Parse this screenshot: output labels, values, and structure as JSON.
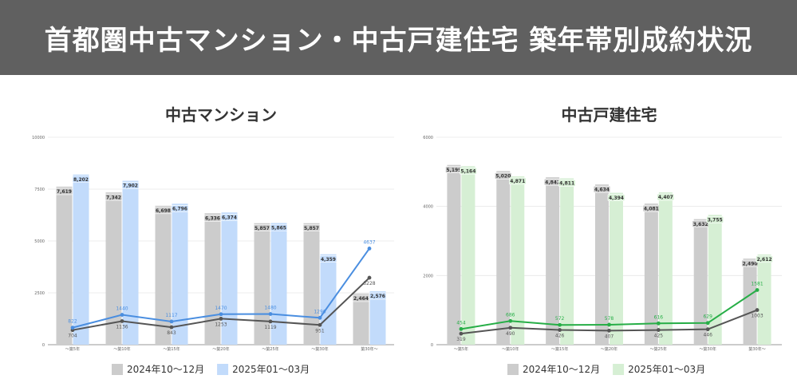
{
  "page_title": "首都圏中古マンション・中古戸建住宅 築年帯別成約状況",
  "chart_data": [
    {
      "type": "bar",
      "title": "中古マンション",
      "categories": [
        "～築5年",
        "～築10年",
        "～築15年",
        "～築20年",
        "～築25年",
        "～築30年",
        "築30年～"
      ],
      "ylim": [
        0,
        10000
      ],
      "yticks": [
        0,
        2500,
        5000,
        7500,
        10000
      ],
      "series": [
        {
          "name": "2024年10～12月",
          "kind": "bar",
          "color": "#cccccc",
          "values": [
            7619,
            7342,
            6698,
            6336,
            5857,
            5857,
            2464
          ],
          "labels": [
            "7,619",
            "7,342",
            "6,698",
            "6,336",
            "5,857",
            "5,857",
            "2,464"
          ]
        },
        {
          "name": "2025年01～03月",
          "kind": "bar",
          "color": "#c2dbfb",
          "values": [
            8202,
            7902,
            6796,
            6374,
            5865,
            4359,
            2576
          ],
          "labels": [
            "8,202",
            "7,902",
            "6,796",
            "6,374",
            "5,865",
            "4,359",
            "2,576"
          ]
        },
        {
          "kind": "line",
          "color": "#555555",
          "values": [
            704,
            1136,
            843,
            1253,
            1119,
            951,
            3228
          ],
          "labels": [
            "704",
            "1136",
            "843",
            "1253",
            "1119",
            "951",
            "3228"
          ]
        },
        {
          "kind": "line",
          "color": "#4a8ee0",
          "values": [
            822,
            1440,
            1117,
            1470,
            1480,
            1296,
            4637
          ],
          "labels": [
            "822",
            "1440",
            "1117",
            "1470",
            "1480",
            "1296",
            "4637"
          ]
        }
      ],
      "legend_position": "bottom",
      "grid": true
    },
    {
      "type": "bar",
      "title": "中古戸建住宅",
      "categories": [
        "～築5年",
        "～築10年",
        "～築15年",
        "～築20年",
        "～築25年",
        "～築30年",
        "築30年～"
      ],
      "ylim": [
        0,
        6000
      ],
      "yticks": [
        0,
        2000,
        4000,
        6000
      ],
      "series": [
        {
          "name": "2024年10～12月",
          "kind": "bar",
          "color": "#cccccc",
          "values": [
            5199,
            5020,
            4842,
            4634,
            4081,
            3632,
            2490
          ],
          "labels": [
            "5,199",
            "5,020",
            "4,842",
            "4,634",
            "4,081",
            "3,632",
            "2,490"
          ]
        },
        {
          "name": "2025年01～03月",
          "kind": "bar",
          "color": "#d6efd4",
          "values": [
            5164,
            4871,
            4811,
            4394,
            4407,
            3755,
            2612
          ],
          "labels": [
            "5,164",
            "4,871",
            "4,811",
            "4,394",
            "4,407",
            "3,755",
            "2,612"
          ]
        },
        {
          "kind": "line",
          "color": "#555555",
          "values": [
            319,
            490,
            426,
            407,
            425,
            446,
            1003
          ],
          "labels": [
            "319",
            "490",
            "426",
            "407",
            "425",
            "446",
            "1003"
          ]
        },
        {
          "kind": "line",
          "color": "#27ae47",
          "values": [
            454,
            686,
            572,
            578,
            616,
            629,
            1581
          ],
          "labels": [
            "454",
            "686",
            "572",
            "578",
            "616",
            "629",
            "1581"
          ]
        }
      ],
      "legend_position": "bottom",
      "grid": true
    }
  ]
}
